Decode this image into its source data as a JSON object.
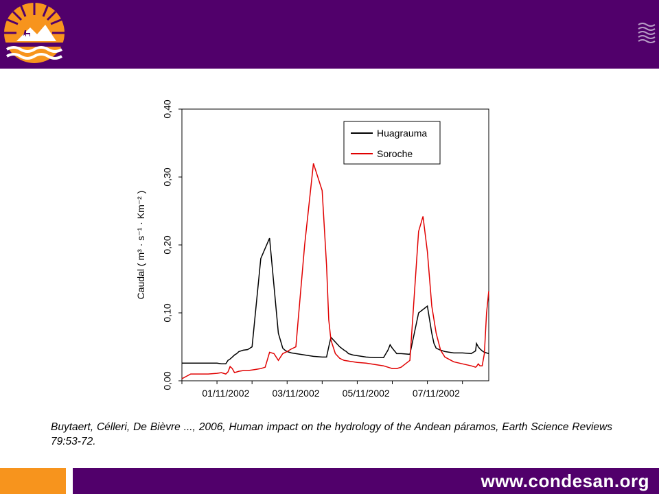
{
  "header": {
    "logo_icon": "condesan-sun-mountain-llama-logo",
    "right_icon": "waves-icon",
    "color": "#51006b"
  },
  "chart_data": {
    "type": "line",
    "title": "",
    "xlabel": "",
    "ylabel": "Caudal ( m³ · s⁻¹ · Km⁻² )",
    "xlim": [
      -10,
      60
    ],
    "ylim": [
      0,
      0.4
    ],
    "yticks": [
      0,
      0.1,
      0.2,
      0.3,
      0.4
    ],
    "ytick_labels": [
      "0,00",
      "0,10",
      "0,20",
      "0,30",
      "0,40"
    ],
    "xticks": [
      0,
      16,
      32,
      48
    ],
    "xtick_labels": [
      "01/11/2002",
      "03/11/2002",
      "05/11/2002",
      "07/11/2002"
    ],
    "grid": false,
    "legend_position": "top-right",
    "series": [
      {
        "name": "Huagrauma",
        "color": "#000000",
        "x": [
          -10,
          -8,
          -6,
          -4,
          -2,
          -1,
          0,
          0.5,
          1,
          1.5,
          2,
          2.5,
          3,
          4,
          5,
          6,
          8,
          10,
          12,
          13,
          13.5,
          14,
          14.5,
          15,
          16,
          18,
          20,
          22,
          23,
          23.5,
          24,
          26,
          27,
          27.5,
          28,
          29,
          30,
          32,
          34,
          36,
          37,
          37.5,
          38,
          39,
          40,
          42,
          44,
          46,
          47,
          47.5,
          48,
          49,
          50,
          52,
          54,
          56,
          57,
          57.2,
          57.6,
          58,
          58.5,
          59,
          59.5,
          60
        ],
        "y": [
          0.026,
          0.026,
          0.026,
          0.026,
          0.026,
          0.025,
          0.025,
          0.03,
          0.032,
          0.035,
          0.038,
          0.04,
          0.043,
          0.045,
          0.046,
          0.05,
          0.18,
          0.21,
          0.07,
          0.048,
          0.045,
          0.043,
          0.042,
          0.041,
          0.04,
          0.038,
          0.036,
          0.035,
          0.035,
          0.05,
          0.064,
          0.05,
          0.045,
          0.043,
          0.04,
          0.038,
          0.037,
          0.035,
          0.034,
          0.034,
          0.045,
          0.053,
          0.048,
          0.04,
          0.04,
          0.039,
          0.1,
          0.11,
          0.07,
          0.055,
          0.048,
          0.045,
          0.043,
          0.041,
          0.041,
          0.04,
          0.044,
          0.055,
          0.05,
          0.047,
          0.044,
          0.042,
          0.041,
          0.04
        ]
      },
      {
        "name": "Soroche",
        "color": "#e00000",
        "x": [
          -10,
          -8,
          -6,
          -4,
          -2,
          -1,
          0,
          0.5,
          1,
          1.5,
          2,
          2.5,
          3,
          4,
          5,
          6,
          7,
          8,
          9,
          10,
          11,
          12,
          13,
          14,
          15,
          16,
          18,
          20,
          22,
          23,
          23.5,
          24,
          25,
          26,
          27,
          28,
          29,
          30,
          32,
          34,
          36,
          37,
          37.5,
          38,
          39,
          40,
          42,
          44,
          45,
          46,
          47,
          48,
          49,
          50,
          52,
          54,
          56,
          57,
          57.2,
          57.6,
          58,
          58.5,
          59,
          59.5,
          60
        ],
        "y": [
          0.003,
          0.01,
          0.01,
          0.01,
          0.011,
          0.012,
          0.01,
          0.013,
          0.021,
          0.018,
          0.012,
          0.013,
          0.014,
          0.015,
          0.015,
          0.016,
          0.017,
          0.018,
          0.02,
          0.042,
          0.04,
          0.03,
          0.04,
          0.043,
          0.047,
          0.05,
          0.2,
          0.32,
          0.28,
          0.17,
          0.09,
          0.06,
          0.04,
          0.033,
          0.03,
          0.029,
          0.028,
          0.027,
          0.026,
          0.024,
          0.022,
          0.02,
          0.019,
          0.018,
          0.018,
          0.02,
          0.03,
          0.22,
          0.242,
          0.19,
          0.11,
          0.07,
          0.045,
          0.035,
          0.028,
          0.025,
          0.022,
          0.02,
          0.021,
          0.025,
          0.022,
          0.022,
          0.04,
          0.1,
          0.132
        ]
      }
    ]
  },
  "citation": {
    "line1": "Buytaert, Célleri, De Bièvre ..., 2006, Human impact on the hydrology of the Andean páramos,",
    "line2": "Earth Science Reviews 79:53-72."
  },
  "footer": {
    "url": "www.condesan.org",
    "accent_color": "#f7941d",
    "bar_color": "#51006b"
  }
}
